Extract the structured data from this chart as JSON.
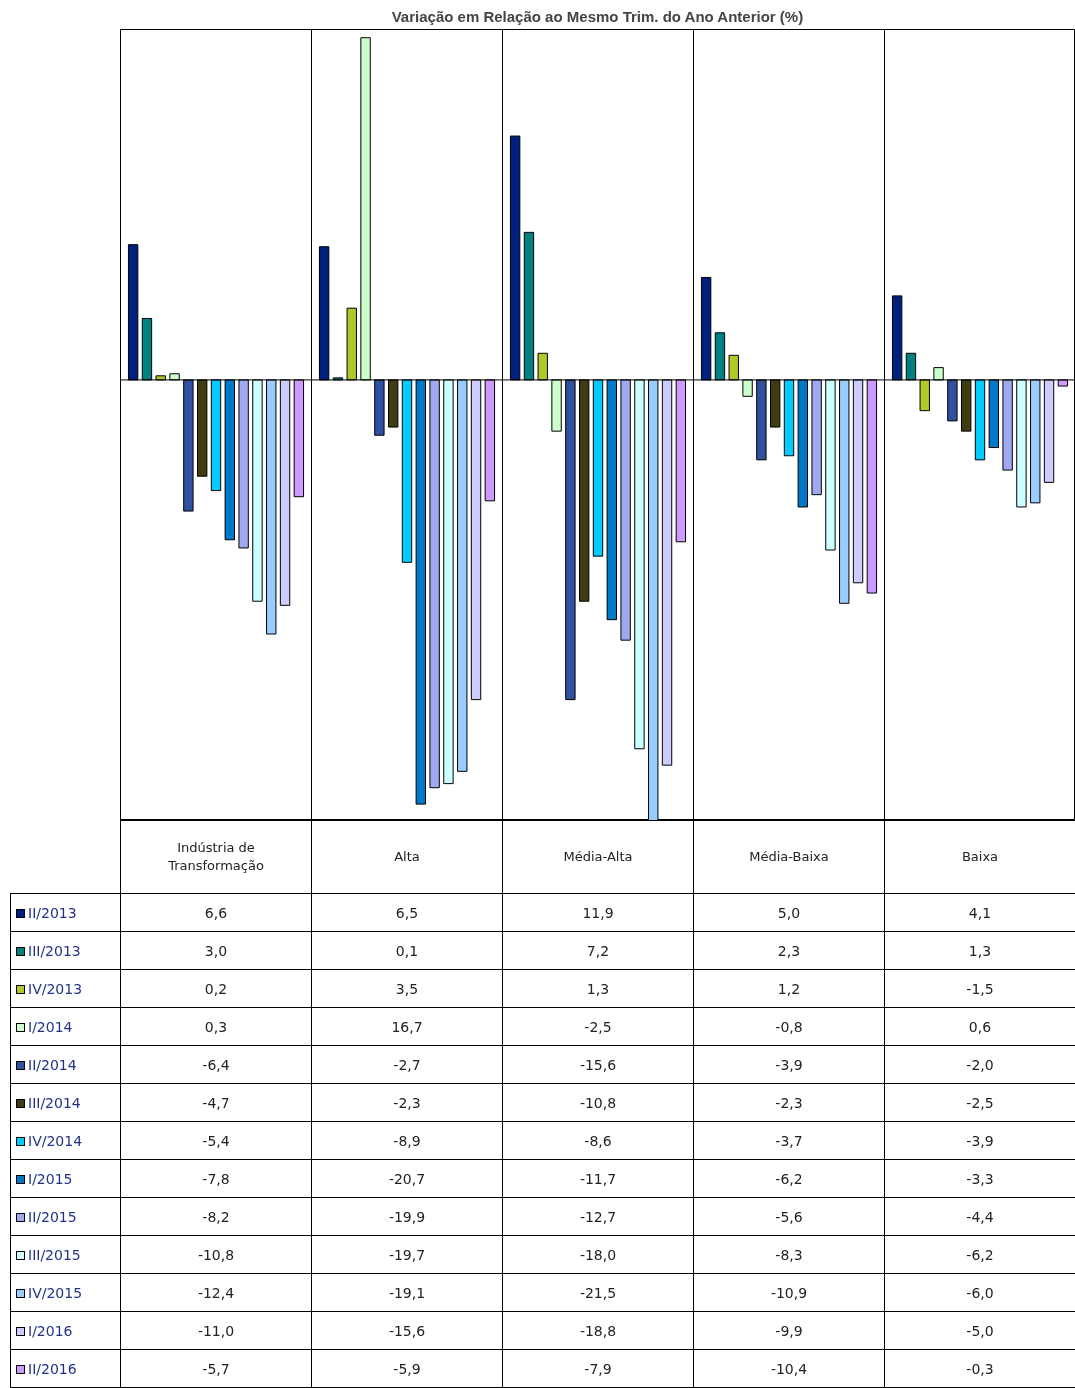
{
  "chart_data": {
    "type": "bar",
    "title": "Variação em Relação ao Mesmo Trim. do Ano Anterior (%)",
    "categories": [
      "Indústria de Transformação",
      "Alta",
      "Média-Alta",
      "Média-Baixa",
      "Baixa"
    ],
    "ylim": [
      -21.5,
      17.1
    ],
    "tick_labels": "x",
    "legend": "bottom left",
    "series": [
      {
        "name": "II/2013",
        "color": "#002080",
        "values": [
          6.6,
          6.5,
          11.9,
          5.0,
          4.1
        ],
        "value_labels": [
          "6,6",
          "6,5",
          "11,9",
          "5,0",
          "4,1"
        ]
      },
      {
        "name": "III/2013",
        "color": "#008080",
        "values": [
          3.0,
          0.1,
          7.2,
          2.3,
          1.3
        ],
        "value_labels": [
          "3,0",
          "0,1",
          "7,2",
          "2,3",
          "1,3"
        ]
      },
      {
        "name": "IV/2013",
        "color": "#b0c828",
        "values": [
          0.2,
          3.5,
          1.3,
          1.2,
          -1.5
        ],
        "value_labels": [
          "0,2",
          "3,5",
          "1,3",
          "1,2",
          "-1,5"
        ]
      },
      {
        "name": "I/2014",
        "color": "#ccffcc",
        "values": [
          0.3,
          16.7,
          -2.5,
          -0.8,
          0.6
        ],
        "value_labels": [
          "0,3",
          "16,7",
          "-2,5",
          "-0,8",
          "0,6"
        ]
      },
      {
        "name": "II/2014",
        "color": "#3050a0",
        "values": [
          -6.4,
          -2.7,
          -15.6,
          -3.9,
          -2.0
        ],
        "value_labels": [
          "-6,4",
          "-2,7",
          "-15,6",
          "-3,9",
          "-2,0"
        ]
      },
      {
        "name": "III/2014",
        "color": "#403c10",
        "values": [
          -4.7,
          -2.3,
          -10.8,
          -2.3,
          -2.5
        ],
        "value_labels": [
          "-4,7",
          "-2,3",
          "-10,8",
          "-2,3",
          "-2,5"
        ]
      },
      {
        "name": "IV/2014",
        "color": "#00ccff",
        "values": [
          -5.4,
          -8.9,
          -8.6,
          -3.7,
          -3.9
        ],
        "value_labels": [
          "-5,4",
          "-8,9",
          "-8,6",
          "-3,7",
          "-3,9"
        ]
      },
      {
        "name": "I/2015",
        "color": "#0078c8",
        "values": [
          -7.8,
          -20.7,
          -11.7,
          -6.2,
          -3.3
        ],
        "value_labels": [
          "-7,8",
          "-20,7",
          "-11,7",
          "-6,2",
          "-3,3"
        ]
      },
      {
        "name": "II/2015",
        "color": "#a0a8f0",
        "values": [
          -8.2,
          -19.9,
          -12.7,
          -5.6,
          -4.4
        ],
        "value_labels": [
          "-8,2",
          "-19,9",
          "-12,7",
          "-5,6",
          "-4,4"
        ]
      },
      {
        "name": "III/2015",
        "color": "#ccffff",
        "values": [
          -10.8,
          -19.7,
          -18.0,
          -8.3,
          -6.2
        ],
        "value_labels": [
          "-10,8",
          "-19,7",
          "-18,0",
          "-8,3",
          "-6,2"
        ]
      },
      {
        "name": "IV/2015",
        "color": "#99ccff",
        "values": [
          -12.4,
          -19.1,
          -21.5,
          -10.9,
          -6.0
        ],
        "value_labels": [
          "-12,4",
          "-19,1",
          "-21,5",
          "-10,9",
          "-6,0"
        ]
      },
      {
        "name": "I/2016",
        "color": "#ccccff",
        "values": [
          -11.0,
          -15.6,
          -18.8,
          -9.9,
          -5.0
        ],
        "value_labels": [
          "-11,0",
          "-15,6",
          "-18,8",
          "-9,9",
          "-5,0"
        ]
      },
      {
        "name": "II/2016",
        "color": "#cc99ff",
        "values": [
          -5.7,
          -5.9,
          -7.9,
          -10.4,
          -0.3
        ],
        "value_labels": [
          "-5,7",
          "-5,9",
          "-7,9",
          "-10,4",
          "-0,3"
        ]
      }
    ]
  }
}
